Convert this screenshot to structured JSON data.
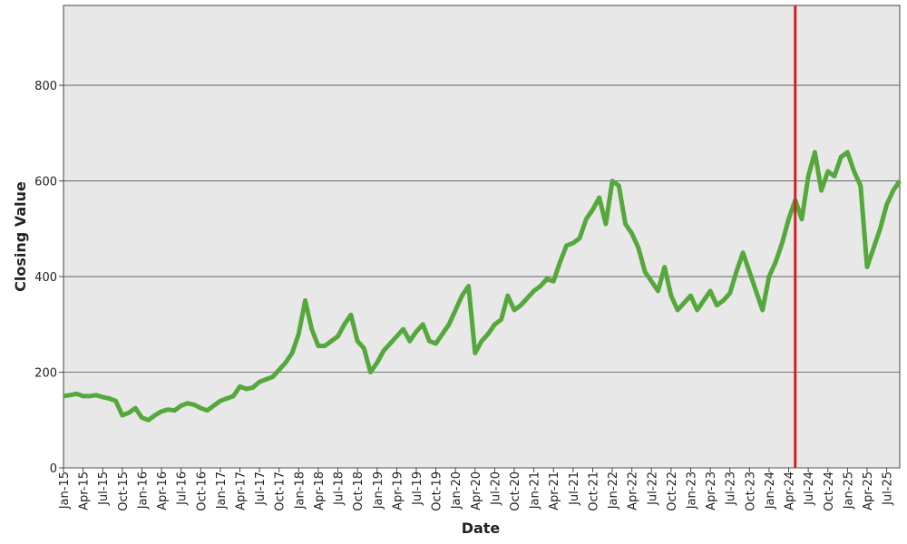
{
  "chart_data": {
    "type": "line",
    "xlabel": "Date",
    "ylabel": "Closing Value",
    "x": [
      "Jan-15",
      "Feb-15",
      "Mar-15",
      "Apr-15",
      "May-15",
      "Jun-15",
      "Jul-15",
      "Aug-15",
      "Sep-15",
      "Oct-15",
      "Nov-15",
      "Dec-15",
      "Jan-16",
      "Feb-16",
      "Mar-16",
      "Apr-16",
      "May-16",
      "Jun-16",
      "Jul-16",
      "Aug-16",
      "Sep-16",
      "Oct-16",
      "Nov-16",
      "Dec-16",
      "Jan-17",
      "Feb-17",
      "Mar-17",
      "Apr-17",
      "May-17",
      "Jun-17",
      "Jul-17",
      "Aug-17",
      "Sep-17",
      "Oct-17",
      "Nov-17",
      "Dec-17",
      "Jan-18",
      "Feb-18",
      "Mar-18",
      "Apr-18",
      "May-18",
      "Jun-18",
      "Jul-18",
      "Aug-18",
      "Sep-18",
      "Oct-18",
      "Nov-18",
      "Dec-18",
      "Jan-19",
      "Feb-19",
      "Mar-19",
      "Apr-19",
      "May-19",
      "Jun-19",
      "Jul-19",
      "Aug-19",
      "Sep-19",
      "Oct-19",
      "Nov-19",
      "Dec-19",
      "Jan-20",
      "Feb-20",
      "Mar-20",
      "Apr-20",
      "May-20",
      "Jun-20",
      "Jul-20",
      "Aug-20",
      "Sep-20",
      "Oct-20",
      "Nov-20",
      "Dec-20",
      "Jan-21",
      "Feb-21",
      "Mar-21",
      "Apr-21",
      "May-21",
      "Jun-21",
      "Jul-21",
      "Aug-21",
      "Sep-21",
      "Oct-21",
      "Nov-21",
      "Dec-21",
      "Jan-22",
      "Feb-22",
      "Mar-22",
      "Apr-22",
      "May-22",
      "Jun-22",
      "Jul-22",
      "Aug-22",
      "Sep-22",
      "Oct-22",
      "Nov-22",
      "Dec-22",
      "Jan-23",
      "Feb-23",
      "Mar-23",
      "Apr-23",
      "May-23",
      "Jun-23",
      "Jul-23",
      "Aug-23",
      "Sep-23",
      "Oct-23",
      "Nov-23",
      "Dec-23",
      "Jan-24",
      "Feb-24",
      "Mar-24",
      "Apr-24",
      "May-24",
      "Jun-24",
      "Jul-24",
      "Aug-24",
      "Sep-24",
      "Oct-24",
      "Nov-24",
      "Dec-24",
      "Jan-25",
      "Feb-25",
      "Mar-25",
      "Apr-25",
      "May-25",
      "Jun-25",
      "Jul-25",
      "Aug-25",
      "Sep-25"
    ],
    "series": [
      {
        "name": "Closing Value",
        "color": "#55a83c",
        "values": [
          150,
          152,
          155,
          150,
          150,
          152,
          148,
          145,
          140,
          110,
          115,
          125,
          105,
          100,
          110,
          118,
          122,
          120,
          130,
          135,
          132,
          125,
          120,
          130,
          140,
          145,
          150,
          170,
          165,
          168,
          180,
          185,
          190,
          205,
          220,
          240,
          280,
          350,
          290,
          255,
          255,
          265,
          275,
          300,
          320,
          265,
          250,
          200,
          220,
          245,
          260,
          275,
          290,
          265,
          285,
          300,
          265,
          260,
          280,
          300,
          330,
          360,
          380,
          240,
          265,
          280,
          300,
          310,
          360,
          330,
          340,
          355,
          370,
          380,
          395,
          390,
          430,
          465,
          470,
          480,
          520,
          540,
          565,
          510,
          600,
          590,
          510,
          490,
          460,
          410,
          390,
          370,
          420,
          360,
          330,
          345,
          360,
          330,
          350,
          370,
          340,
          350,
          365,
          410,
          450,
          410,
          370,
          330,
          400,
          430,
          470,
          520,
          560,
          520,
          610,
          660,
          580,
          620,
          610,
          650,
          660,
          620,
          590,
          420,
          460,
          500,
          550,
          580,
          600
        ]
      }
    ],
    "xticks": [
      "Jan-15",
      "Apr-15",
      "Jul-15",
      "Oct-15",
      "Jan-16",
      "Apr-16",
      "Jul-16",
      "Oct-16",
      "Jan-17",
      "Apr-17",
      "Jul-17",
      "Oct-17",
      "Jan-18",
      "Apr-18",
      "Jul-18",
      "Oct-18",
      "Jan-19",
      "Apr-19",
      "Jul-19",
      "Oct-19",
      "Jan-20",
      "Apr-20",
      "Jul-20",
      "Oct-20",
      "Jan-21",
      "Apr-21",
      "Jul-21",
      "Oct-21",
      "Jan-22",
      "Apr-22",
      "Jul-22",
      "Oct-22",
      "Jan-23",
      "Apr-23",
      "Jul-23",
      "Oct-23",
      "Jan-24",
      "Apr-24",
      "Jul-24",
      "Oct-24",
      "Jan-25",
      "Apr-25",
      "Jul-25"
    ],
    "ylim": [
      0,
      967
    ],
    "yticks": [
      0,
      200,
      400,
      600,
      800
    ],
    "grid": true,
    "vline": {
      "x": "May-24",
      "color": "#d42020"
    }
  }
}
